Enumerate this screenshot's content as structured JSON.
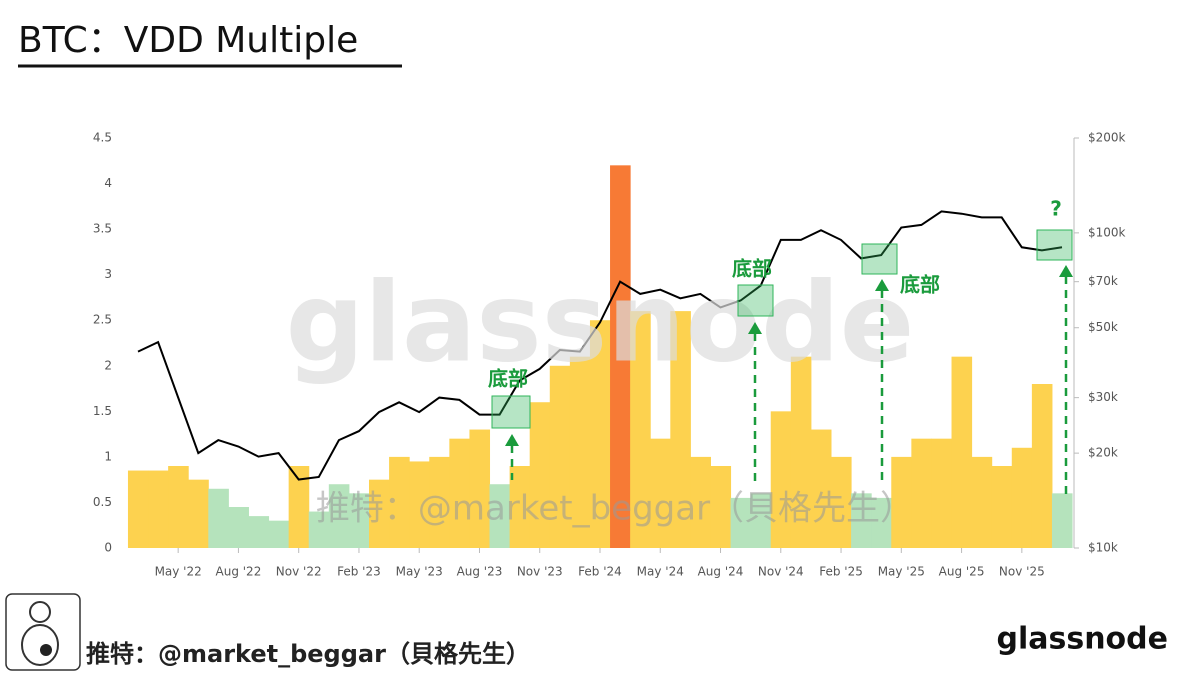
{
  "chart_data": {
    "type": "combo",
    "title": "BTC：VDD Multiple",
    "x": [
      "2022-03",
      "2022-04",
      "2022-05",
      "2022-06",
      "2022-07",
      "2022-08",
      "2022-09",
      "2022-10",
      "2022-11",
      "2022-12",
      "2023-01",
      "2023-02",
      "2023-03",
      "2023-04",
      "2023-05",
      "2023-06",
      "2023-07",
      "2023-08",
      "2023-09",
      "2023-10",
      "2023-11",
      "2023-12",
      "2024-01",
      "2024-02",
      "2024-03",
      "2024-04",
      "2024-05",
      "2024-06",
      "2024-07",
      "2024-08",
      "2024-09",
      "2024-10",
      "2024-11",
      "2024-12",
      "2025-01",
      "2025-02",
      "2025-03",
      "2025-04",
      "2025-05",
      "2025-06",
      "2025-07",
      "2025-08",
      "2025-09",
      "2025-10",
      "2025-11",
      "2025-12",
      "2026-01"
    ],
    "xlim": [
      "2022-03",
      "2026-01"
    ],
    "xticks": [
      {
        "value": "2022-05",
        "label": "May '22"
      },
      {
        "value": "2022-08",
        "label": "Aug '22"
      },
      {
        "value": "2022-11",
        "label": "Nov '22"
      },
      {
        "value": "2023-02",
        "label": "Feb '23"
      },
      {
        "value": "2023-05",
        "label": "May '23"
      },
      {
        "value": "2023-08",
        "label": "Aug '23"
      },
      {
        "value": "2023-11",
        "label": "Nov '23"
      },
      {
        "value": "2024-02",
        "label": "Feb '24"
      },
      {
        "value": "2024-05",
        "label": "May '24"
      },
      {
        "value": "2024-08",
        "label": "Aug '24"
      },
      {
        "value": "2024-11",
        "label": "Nov '24"
      },
      {
        "value": "2025-02",
        "label": "Feb '25"
      },
      {
        "value": "2025-05",
        "label": "May '25"
      },
      {
        "value": "2025-08",
        "label": "Aug '25"
      },
      {
        "value": "2025-11",
        "label": "Nov '25"
      }
    ],
    "ylim": [
      0,
      4.5
    ],
    "yticks": [
      0,
      0.5,
      1,
      1.5,
      2,
      2.5,
      3,
      3.5,
      4,
      4.5
    ],
    "y2lim": [
      10000,
      200000
    ],
    "y2_scale": "log",
    "y2ticks": [
      {
        "value": 10000,
        "label": "$10k"
      },
      {
        "value": 20000,
        "label": "$20k"
      },
      {
        "value": 30000,
        "label": "$30k"
      },
      {
        "value": 50000,
        "label": "$50k"
      },
      {
        "value": 70000,
        "label": "$70k"
      },
      {
        "value": 100000,
        "label": "$100k"
      },
      {
        "value": 200000,
        "label": "$200k"
      }
    ],
    "series": [
      {
        "type": "bar",
        "color_scale": [
          {
            "below": 0.75,
            "color": "#b5e3bc"
          },
          {
            "below": 2.9,
            "color": "#fdd24f"
          },
          {
            "color": "#f77a35"
          }
        ],
        "values": [
          0.85,
          0.85,
          0.9,
          0.75,
          0.65,
          0.45,
          0.35,
          0.3,
          0.9,
          0.4,
          0.7,
          0.6,
          0.75,
          1.0,
          0.95,
          1.0,
          1.2,
          1.3,
          0.7,
          0.9,
          1.6,
          2.0,
          2.1,
          2.5,
          4.2,
          2.6,
          1.2,
          2.6,
          1.0,
          0.9,
          0.55,
          0.6,
          1.5,
          2.1,
          1.3,
          1.0,
          0.6,
          0.55,
          1.0,
          1.2,
          1.2,
          2.1,
          1.0,
          0.9,
          1.1,
          1.8,
          0.6
        ]
      },
      {
        "type": "line",
        "axis": "y2",
        "color": "#000000",
        "values": [
          42000,
          45000,
          30000,
          20000,
          22000,
          21000,
          19500,
          20000,
          16500,
          16800,
          22000,
          23500,
          27000,
          29000,
          27000,
          30000,
          29500,
          26500,
          26500,
          34000,
          37000,
          42500,
          42000,
          52000,
          70000,
          64000,
          66000,
          62000,
          64000,
          58000,
          61000,
          68000,
          95000,
          95000,
          102000,
          95000,
          83000,
          85000,
          104000,
          106000,
          117000,
          115000,
          112000,
          112000,
          90000,
          88000,
          90000
        ]
      }
    ],
    "annotations": [
      "底部",
      "底部",
      "底部",
      "?"
    ],
    "watermark": "glassnode",
    "watermark_handle": "推特：@market_beggar（貝格先生）"
  },
  "footer_handle": "推特：@market_beggar（貝格先生）",
  "logo": "glassnode"
}
